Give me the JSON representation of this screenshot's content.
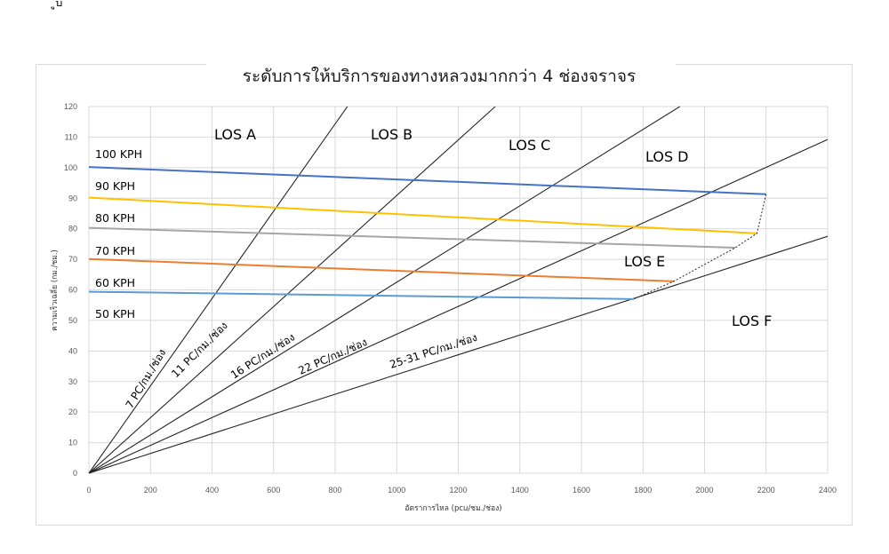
{
  "top_fragment": {
    "text": "ูป"
  },
  "chart_data": {
    "type": "line",
    "title": "ระดับการให้บริการของทางหลวงมากกว่า 4 ช่องจราจร",
    "xlabel": "อัตราการไหล (pcu/ชม./ช่อง)",
    "ylabel": "ความเร็วเฉลี่ย (กม./ชม.)",
    "xlim": [
      0,
      2400
    ],
    "ylim": [
      0,
      120
    ],
    "x_ticks": [
      0,
      200,
      400,
      600,
      800,
      1000,
      1200,
      1400,
      1600,
      1800,
      2000,
      2200,
      2400
    ],
    "y_ticks": [
      0,
      10,
      20,
      30,
      40,
      50,
      60,
      70,
      80,
      90,
      100,
      110,
      120
    ],
    "grid": true,
    "speed_curves": [
      {
        "name": "100 KPH",
        "color": "#4472c4",
        "points": [
          [
            0,
            100.2
          ],
          [
            2200,
            91.3
          ]
        ]
      },
      {
        "name": "90 KPH",
        "color": "#ffc000",
        "points": [
          [
            0,
            90.2
          ],
          [
            2170,
            78.5
          ]
        ]
      },
      {
        "name": "80 KPH",
        "color": "#a5a5a5",
        "points": [
          [
            0,
            80.3
          ],
          [
            2100,
            73.8
          ]
        ]
      },
      {
        "name": "70 KPH",
        "color": "#ed7d31",
        "points": [
          [
            0,
            70.1
          ],
          [
            1900,
            62.8
          ]
        ]
      },
      {
        "name": "60 KPH",
        "color": "#5b9bd5",
        "points": [
          [
            0,
            59.4
          ],
          [
            1770,
            57.0
          ]
        ]
      }
    ],
    "speed_labels": [
      "100 KPH",
      "90 KPH",
      "80 KPH",
      "70 KPH",
      "60 KPH",
      "50 KPH"
    ],
    "density_lines": [
      {
        "label": "7 PC/กม./ช่อง",
        "slope": 0.1429
      },
      {
        "label": "11 PC/กม./ช่อง",
        "slope": 0.0909
      },
      {
        "label": "16 PC/กม./ช่อง",
        "slope": 0.0625
      },
      {
        "label": "22 PC/กม./ช่อง",
        "slope": 0.0455
      },
      {
        "label": "25-31 PC/กม./ช่อง",
        "slope": 0.0323
      }
    ],
    "capacity_boundary": [
      [
        2200,
        91.3
      ],
      [
        2170,
        78.5
      ],
      [
        2100,
        73.8
      ],
      [
        1900,
        62.8
      ],
      [
        1770,
        57.0
      ]
    ],
    "regions": [
      "LOS A",
      "LOS B",
      "LOS C",
      "LOS D",
      "LOS E",
      "LOS F"
    ]
  }
}
